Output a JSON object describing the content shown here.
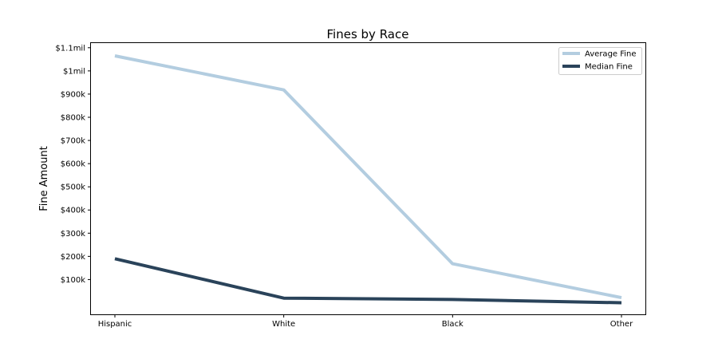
{
  "chart_data": {
    "type": "line",
    "title": "Fines by Race",
    "xlabel": "",
    "ylabel": "Fine Amount",
    "categories": [
      "Hispanic",
      "White",
      "Black",
      "Other"
    ],
    "series": [
      {
        "name": "Average Fine",
        "values": [
          1065000,
          918000,
          168000,
          22000
        ],
        "color": "#b3cde0"
      },
      {
        "name": "Median Fine",
        "values": [
          190000,
          20000,
          14000,
          0
        ],
        "color": "#2a435a"
      }
    ],
    "ylim": [
      -50000,
      1120000
    ],
    "yticks": [
      {
        "value": 100000,
        "label": "$100k"
      },
      {
        "value": 200000,
        "label": "$200k"
      },
      {
        "value": 300000,
        "label": "$300k"
      },
      {
        "value": 400000,
        "label": "$400k"
      },
      {
        "value": 500000,
        "label": "$500k"
      },
      {
        "value": 600000,
        "label": "$600k"
      },
      {
        "value": 700000,
        "label": "$700k"
      },
      {
        "value": 800000,
        "label": "$800k"
      },
      {
        "value": 900000,
        "label": "$900k"
      },
      {
        "value": 1000000,
        "label": "$1mil"
      },
      {
        "value": 1100000,
        "label": "$1.1mil"
      }
    ],
    "grid": false,
    "legend": "top-right"
  }
}
